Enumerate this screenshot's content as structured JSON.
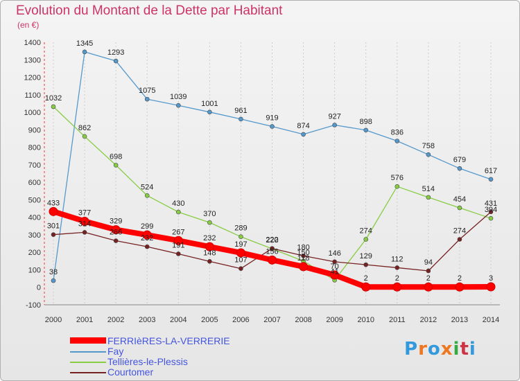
{
  "header": {
    "title": "Evolution du Montant de la Dette par Habitant",
    "unit": "(en €)"
  },
  "logo": {
    "text": "Proxiti",
    "colors": [
      "#3399dd",
      "#ee7722",
      "#3399dd",
      "#ee7722",
      "#33aa44",
      "#cc3344",
      "#3399dd"
    ]
  },
  "chart_data": {
    "type": "line",
    "title": "Evolution du Montant de la Dette par Habitant",
    "subtitle": "(en €)",
    "x": [
      "2000",
      "2001",
      "2002",
      "2003",
      "2004",
      "2005",
      "2006",
      "2007",
      "2008",
      "2009",
      "2010",
      "2011",
      "2012",
      "2013",
      "2014"
    ],
    "y_ticks": [
      -100,
      0,
      100,
      200,
      300,
      400,
      500,
      600,
      700,
      800,
      900,
      1000,
      1100,
      1200,
      1300,
      1400
    ],
    "ylim": [
      -100,
      1400
    ],
    "grid": "vertical dashed",
    "legend_position": "bottom-left",
    "series": [
      {
        "name": "FERRIèRES-LA-VERRERIE",
        "color": "#ff0000",
        "values": [
          433,
          377,
          329,
          299,
          267,
          232,
          197,
          156,
          118,
          70,
          2,
          2,
          2,
          2,
          3
        ],
        "labels": [
          "433",
          "377",
          "329",
          "299",
          "267",
          "232",
          "197",
          "156",
          "118",
          "70",
          "2",
          "2",
          "2",
          "2",
          "3"
        ]
      },
      {
        "name": "Fay",
        "color": "#5599cc",
        "values": [
          38,
          1345,
          1293,
          1075,
          1039,
          1001,
          961,
          919,
          874,
          927,
          898,
          836,
          758,
          679,
          617
        ],
        "labels": [
          "38",
          "1345",
          "1293",
          "1075",
          "1039",
          "1001",
          "961",
          "919",
          "874",
          "927",
          "898",
          "836",
          "758",
          "679",
          "617"
        ]
      },
      {
        "name": "Tellières-le-Plessis",
        "color": "#88cc44",
        "values": [
          1032,
          862,
          698,
          524,
          430,
          370,
          289,
          220,
          150,
          41,
          274,
          576,
          514,
          454,
          394
        ],
        "labels": [
          "1032",
          "862",
          "698",
          "524",
          "430",
          "370",
          "289",
          "220",
          "150",
          "41",
          "274",
          "576",
          "514",
          "454",
          "394"
        ]
      },
      {
        "name": "Courtomer",
        "color": "#772222",
        "values": [
          301,
          314,
          266,
          232,
          191,
          148,
          107,
          222,
          180,
          146,
          129,
          112,
          94,
          274,
          431
        ],
        "labels": [
          "301",
          "314",
          "266",
          "232",
          "191",
          "148",
          "107",
          "222",
          "180",
          "146",
          "129",
          "112",
          "94",
          "274",
          "431"
        ]
      }
    ]
  }
}
